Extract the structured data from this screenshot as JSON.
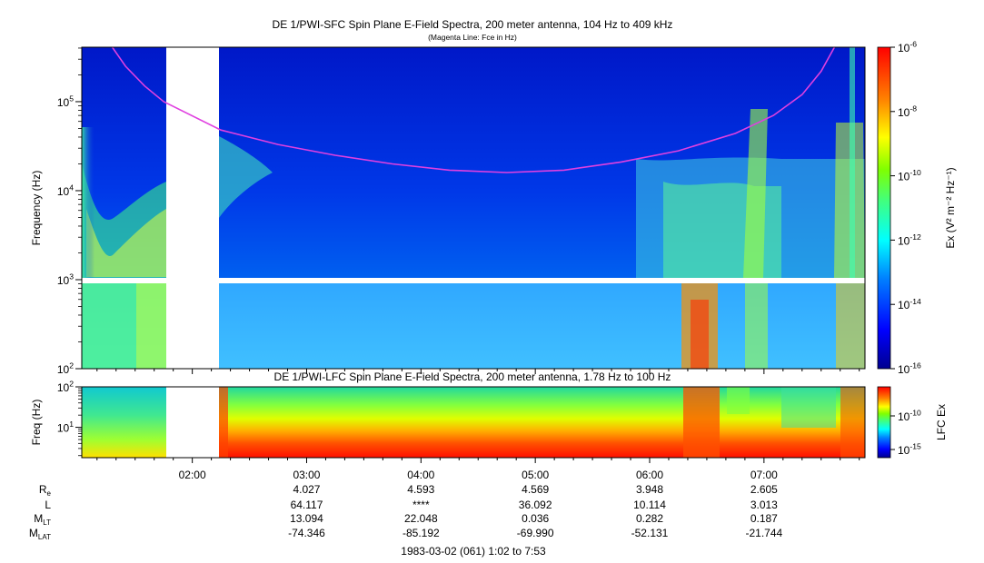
{
  "header": {
    "title": "DE 1/PWI-SFC  Spin Plane E-Field Spectra, 200 meter antenna, 104 Hz to 409 kHz",
    "subtitle": "(Magenta Line: Fce in Hz)"
  },
  "chart_data": [
    {
      "type": "heatmap",
      "title": "DE 1/PWI-SFC  Spin Plane E-Field Spectra, 200 meter antenna, 104 Hz to 409 kHz",
      "subtitle": "(Magenta Line: Fce in Hz)",
      "ylabel": "Frequency (Hz)",
      "yscale": "log",
      "ylim": [
        100,
        409000
      ],
      "ytick_labels": [
        "10^2",
        "10^3",
        "10^4",
        "10^5"
      ],
      "ytick_values": [
        100,
        1000,
        10000,
        100000
      ],
      "xlim": [
        "01:02",
        "07:53"
      ],
      "xtick_labels": [
        "02:00",
        "03:00",
        "04:00",
        "05:00",
        "06:00",
        "07:00"
      ],
      "data_gap": [
        "01:48",
        "02:15"
      ],
      "colorbar": {
        "label": "Ex (V² m⁻² Hz⁻¹)",
        "scale": "log",
        "range": [
          1e-16,
          1e-06
        ],
        "tick_labels": [
          "10^-6",
          "10^-8",
          "10^-10",
          "10^-12",
          "10^-14",
          "10^-16"
        ],
        "tick_values": [
          1e-06,
          1e-08,
          1e-10,
          1e-12,
          1e-14,
          1e-16
        ]
      },
      "overlay_line": {
        "name": "Fce",
        "color": "#e040e0",
        "points": [
          [
            "01:18",
            409000
          ],
          [
            "01:25",
            250000
          ],
          [
            "01:35",
            150000
          ],
          [
            "01:45",
            100000
          ],
          [
            "02:15",
            48000
          ],
          [
            "02:45",
            33000
          ],
          [
            "03:15",
            25000
          ],
          [
            "03:45",
            20000
          ],
          [
            "04:15",
            17000
          ],
          [
            "04:45",
            16000
          ],
          [
            "05:15",
            17000
          ],
          [
            "05:45",
            21000
          ],
          [
            "06:15",
            28000
          ],
          [
            "06:45",
            44000
          ],
          [
            "07:05",
            70000
          ],
          [
            "07:20",
            120000
          ],
          [
            "07:30",
            220000
          ],
          [
            "07:37",
            409000
          ]
        ]
      }
    },
    {
      "type": "heatmap",
      "title": "DE 1/PWI-LFC  Spin Plane E-Field Spectra, 200 meter antenna, 1.78 Hz to 100 Hz",
      "ylabel": "Freq (Hz)",
      "yscale": "log",
      "ylim": [
        1.78,
        100
      ],
      "ytick_labels": [
        "10^1",
        "10^2"
      ],
      "ytick_values": [
        10,
        100
      ],
      "xlim": [
        "01:02",
        "07:53"
      ],
      "data_gap": [
        "01:48",
        "02:15"
      ],
      "colorbar": {
        "label": "LFC Ex",
        "scale": "log",
        "tick_labels": [
          "10^-10",
          "10^-15"
        ],
        "tick_values": [
          1e-10,
          1e-15
        ]
      }
    }
  ],
  "lower": {
    "title": "DE 1/PWI-LFC  Spin Plane E-Field Spectra, 200 meter antenna, 1.78 Hz to 100 Hz"
  },
  "ephemeris": {
    "row_labels": [
      {
        "main": "R",
        "sub": "e"
      },
      {
        "main": "L",
        "sub": ""
      },
      {
        "main": "M",
        "sub": "LT"
      },
      {
        "main": "M",
        "sub": "LAT"
      }
    ],
    "times": [
      "02:00",
      "03:00",
      "04:00",
      "05:00",
      "06:00",
      "07:00"
    ],
    "columns": [
      {
        "time": "03:00",
        "Re": "4.027",
        "L": "64.117",
        "MLT": "13.094",
        "MLAT": "-74.346"
      },
      {
        "time": "04:00",
        "Re": "4.593",
        "L": "****",
        "MLT": "22.048",
        "MLAT": "-85.192"
      },
      {
        "time": "05:00",
        "Re": "4.569",
        "L": "36.092",
        "MLT": "0.036",
        "MLAT": "-69.990"
      },
      {
        "time": "06:00",
        "Re": "3.948",
        "L": "10.114",
        "MLT": "0.282",
        "MLAT": "-52.131"
      },
      {
        "time": "07:00",
        "Re": "2.605",
        "L": "3.013",
        "MLT": "0.187",
        "MLAT": "-21.744"
      }
    ],
    "footer": "1983-03-02 (061) 1:02 to 7:53"
  }
}
